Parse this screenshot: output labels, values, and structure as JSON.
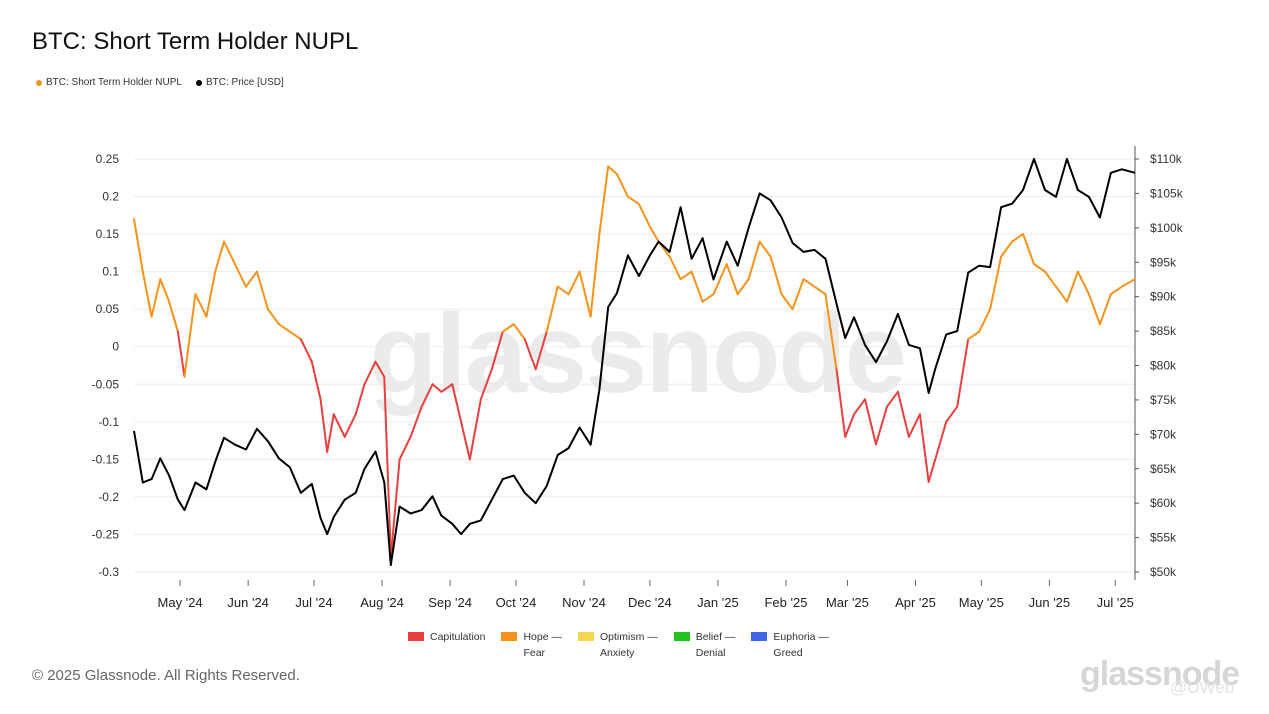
{
  "title": "BTC: Short Term Holder NUPL",
  "top_legend": [
    {
      "label": "BTC: Short Term Holder NUPL",
      "color": "#f7931a"
    },
    {
      "label": "BTC: Price [USD]",
      "color": "#000000"
    }
  ],
  "bottom_legend": [
    {
      "label": "Capitulation",
      "color": "#e8403f"
    },
    {
      "label": "Hope —\nFear",
      "color": "#f7931a"
    },
    {
      "label": "Optimism —\nAnxiety",
      "color": "#f5d64e"
    },
    {
      "label": "Belief —\nDenial",
      "color": "#22c41c"
    },
    {
      "label": "Euphoria —\nGreed",
      "color": "#3f66e8"
    }
  ],
  "watermark": "glassnode",
  "brand_mark": "glassnode",
  "handle": "@UWeb",
  "copyright": "© 2025 Glassnode. All Rights Reserved.",
  "chart_data": {
    "type": "line",
    "x_ticks": [
      "May '24",
      "Jun '24",
      "Jul '24",
      "Aug '24",
      "Sep '24",
      "Oct '24",
      "Nov '24",
      "Dec '24",
      "Jan '25",
      "Feb '25",
      "Mar '25",
      "Apr '25",
      "May '25",
      "Jun '25",
      "Jul '25"
    ],
    "x_range": [
      "2024-04-10",
      "2025-07-10"
    ],
    "left_axis": {
      "ticks": [
        "0.25",
        "0.2",
        "0.15",
        "0.1",
        "0.05",
        "0",
        "-0.05",
        "-0.1",
        "-0.15",
        "-0.2",
        "-0.25",
        "-0.3"
      ],
      "range": [
        -0.3,
        0.25
      ]
    },
    "right_axis": {
      "ticks": [
        "$110k",
        "$105k",
        "$100k",
        "$95k",
        "$90k",
        "$85k",
        "$80k",
        "$75k",
        "$70k",
        "$65k",
        "$60k",
        "$55k",
        "$50k"
      ],
      "range": [
        50000,
        110000
      ]
    },
    "grid": true,
    "series": [
      {
        "name": "BTC: Short Term Holder NUPL",
        "axis": "left",
        "x": [
          "2024-04-10",
          "2024-04-14",
          "2024-04-18",
          "2024-04-22",
          "2024-04-26",
          "2024-04-30",
          "2024-05-03",
          "2024-05-08",
          "2024-05-13",
          "2024-05-17",
          "2024-05-21",
          "2024-05-26",
          "2024-05-31",
          "2024-06-05",
          "2024-06-10",
          "2024-06-15",
          "2024-06-20",
          "2024-06-25",
          "2024-06-30",
          "2024-07-04",
          "2024-07-07",
          "2024-07-10",
          "2024-07-15",
          "2024-07-20",
          "2024-07-24",
          "2024-07-29",
          "2024-08-02",
          "2024-08-05",
          "2024-08-09",
          "2024-08-14",
          "2024-08-19",
          "2024-08-24",
          "2024-08-28",
          "2024-09-02",
          "2024-09-06",
          "2024-09-10",
          "2024-09-15",
          "2024-09-20",
          "2024-09-25",
          "2024-09-30",
          "2024-10-05",
          "2024-10-10",
          "2024-10-15",
          "2024-10-20",
          "2024-10-25",
          "2024-10-30",
          "2024-11-04",
          "2024-11-08",
          "2024-11-12",
          "2024-11-16",
          "2024-11-21",
          "2024-11-26",
          "2024-12-01",
          "2024-12-05",
          "2024-12-10",
          "2024-12-15",
          "2024-12-20",
          "2024-12-25",
          "2024-12-30",
          "2025-01-05",
          "2025-01-10",
          "2025-01-15",
          "2025-01-20",
          "2025-01-25",
          "2025-01-30",
          "2025-02-04",
          "2025-02-09",
          "2025-02-14",
          "2025-02-19",
          "2025-02-24",
          "2025-02-28",
          "2025-03-04",
          "2025-03-09",
          "2025-03-14",
          "2025-03-19",
          "2025-03-24",
          "2025-03-29",
          "2025-04-03",
          "2025-04-07",
          "2025-04-10",
          "2025-04-15",
          "2025-04-20",
          "2025-04-25",
          "2025-04-30",
          "2025-05-05",
          "2025-05-10",
          "2025-05-15",
          "2025-05-20",
          "2025-05-25",
          "2025-05-30",
          "2025-06-04",
          "2025-06-09",
          "2025-06-14",
          "2025-06-19",
          "2025-06-24",
          "2025-06-29",
          "2025-07-04",
          "2025-07-10"
        ],
        "y": [
          0.17,
          0.1,
          0.04,
          0.09,
          0.06,
          0.02,
          -0.04,
          0.07,
          0.04,
          0.1,
          0.14,
          0.11,
          0.08,
          0.1,
          0.05,
          0.03,
          0.02,
          0.01,
          -0.02,
          -0.07,
          -0.14,
          -0.09,
          -0.12,
          -0.09,
          -0.05,
          -0.02,
          -0.04,
          -0.28,
          -0.15,
          -0.12,
          -0.08,
          -0.05,
          -0.06,
          -0.05,
          -0.1,
          -0.15,
          -0.07,
          -0.03,
          0.02,
          0.03,
          0.01,
          -0.03,
          0.02,
          0.08,
          0.07,
          0.1,
          0.04,
          0.15,
          0.24,
          0.23,
          0.2,
          0.19,
          0.16,
          0.14,
          0.12,
          0.09,
          0.1,
          0.06,
          0.07,
          0.11,
          0.07,
          0.09,
          0.14,
          0.12,
          0.07,
          0.05,
          0.09,
          0.08,
          0.07,
          -0.03,
          -0.12,
          -0.09,
          -0.07,
          -0.13,
          -0.08,
          -0.06,
          -0.12,
          -0.09,
          -0.18,
          -0.15,
          -0.1,
          -0.08,
          0.01,
          0.02,
          0.05,
          0.12,
          0.14,
          0.15,
          0.11,
          0.1,
          0.08,
          0.06,
          0.1,
          0.07,
          0.03,
          0.07,
          0.08,
          0.09
        ]
      },
      {
        "name": "BTC: Price [USD]",
        "axis": "right",
        "x": [
          "2024-04-10",
          "2024-04-14",
          "2024-04-18",
          "2024-04-22",
          "2024-04-26",
          "2024-04-30",
          "2024-05-03",
          "2024-05-08",
          "2024-05-13",
          "2024-05-17",
          "2024-05-21",
          "2024-05-26",
          "2024-05-31",
          "2024-06-05",
          "2024-06-10",
          "2024-06-15",
          "2024-06-20",
          "2024-06-25",
          "2024-06-30",
          "2024-07-04",
          "2024-07-07",
          "2024-07-10",
          "2024-07-15",
          "2024-07-20",
          "2024-07-24",
          "2024-07-29",
          "2024-08-02",
          "2024-08-05",
          "2024-08-09",
          "2024-08-14",
          "2024-08-19",
          "2024-08-24",
          "2024-08-28",
          "2024-09-02",
          "2024-09-06",
          "2024-09-10",
          "2024-09-15",
          "2024-09-20",
          "2024-09-25",
          "2024-09-30",
          "2024-10-05",
          "2024-10-10",
          "2024-10-15",
          "2024-10-20",
          "2024-10-25",
          "2024-10-30",
          "2024-11-04",
          "2024-11-08",
          "2024-11-12",
          "2024-11-16",
          "2024-11-21",
          "2024-11-26",
          "2024-12-01",
          "2024-12-05",
          "2024-12-10",
          "2024-12-15",
          "2024-12-20",
          "2024-12-25",
          "2024-12-30",
          "2025-01-05",
          "2025-01-10",
          "2025-01-15",
          "2025-01-20",
          "2025-01-25",
          "2025-01-30",
          "2025-02-04",
          "2025-02-09",
          "2025-02-14",
          "2025-02-19",
          "2025-02-24",
          "2025-02-28",
          "2025-03-04",
          "2025-03-09",
          "2025-03-14",
          "2025-03-19",
          "2025-03-24",
          "2025-03-29",
          "2025-04-03",
          "2025-04-07",
          "2025-04-10",
          "2025-04-15",
          "2025-04-20",
          "2025-04-25",
          "2025-04-30",
          "2025-05-05",
          "2025-05-10",
          "2025-05-15",
          "2025-05-20",
          "2025-05-25",
          "2025-05-30",
          "2025-06-04",
          "2025-06-09",
          "2025-06-14",
          "2025-06-19",
          "2025-06-24",
          "2025-06-29",
          "2025-07-04",
          "2025-07-10"
        ],
        "y": [
          70500,
          63000,
          63500,
          66500,
          64000,
          60500,
          59000,
          63000,
          62000,
          66000,
          69500,
          68500,
          67800,
          70800,
          69000,
          66500,
          65200,
          61500,
          62800,
          57800,
          55500,
          58000,
          60500,
          61500,
          65000,
          67500,
          63000,
          51000,
          59500,
          58500,
          59000,
          61000,
          58200,
          57000,
          55500,
          57000,
          57500,
          60500,
          63500,
          64000,
          61500,
          60000,
          62500,
          67000,
          68000,
          71000,
          68500,
          76500,
          88500,
          90500,
          96000,
          93000,
          96000,
          98000,
          96500,
          103000,
          95500,
          98500,
          92500,
          98000,
          94500,
          100000,
          105000,
          104000,
          101500,
          97800,
          96500,
          96800,
          95500,
          89000,
          84000,
          87000,
          83000,
          80500,
          83500,
          87500,
          83000,
          82500,
          76000,
          79500,
          84500,
          85000,
          93500,
          94500,
          94300,
          103000,
          103500,
          105500,
          110000,
          105500,
          104500,
          110000,
          105500,
          104500,
          101500,
          108000,
          108500,
          108000
        ]
      }
    ]
  }
}
